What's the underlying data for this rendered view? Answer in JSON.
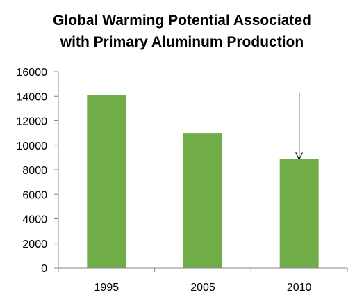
{
  "chart_data": {
    "type": "bar",
    "title_lines": [
      "Global Warming Potential Associated",
      "with Primary Aluminum Production"
    ],
    "categories": [
      "1995",
      "2005",
      "2010"
    ],
    "values": [
      14100,
      11000,
      8900
    ],
    "yticks": [
      "0",
      "2000",
      "4000",
      "6000",
      "8000",
      "10000",
      "12000",
      "14000",
      "16000"
    ],
    "ylim": [
      0,
      16000
    ],
    "xlabel": "",
    "ylabel": "",
    "grid": false,
    "legend": "none",
    "bar_color": "#70AD47",
    "annotation": {
      "type": "arrow",
      "points_to_category": "2010"
    }
  }
}
